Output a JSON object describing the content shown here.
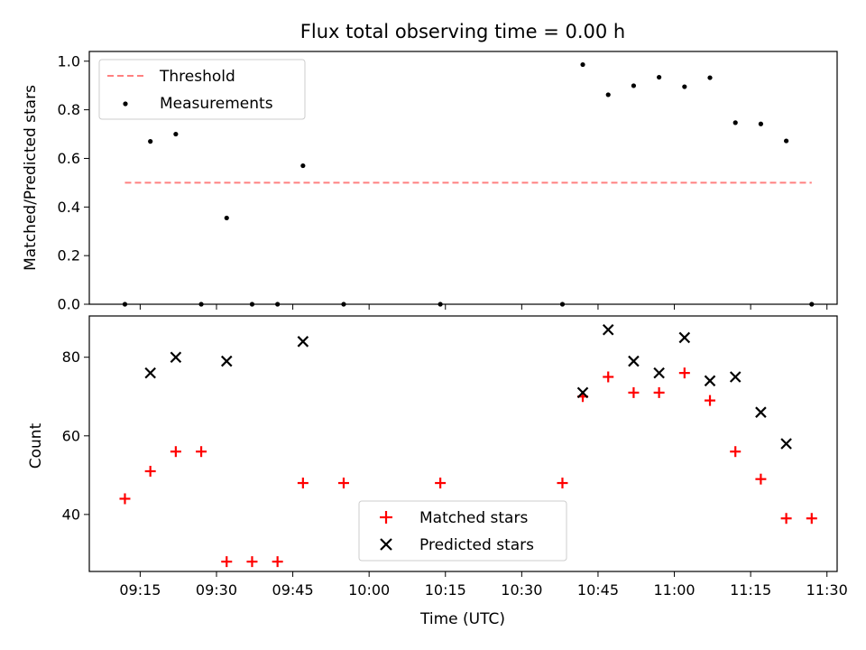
{
  "chart_data": [
    {
      "type": "scatter",
      "title": "Flux total observing time = 0.00 h",
      "xlabel": "",
      "ylabel": "Matched/Predicted stars",
      "ylim": [
        0.0,
        1.04
      ],
      "yticks": [
        "0.0",
        "0.2",
        "0.4",
        "0.6",
        "0.8",
        "1.0"
      ],
      "legend": {
        "placement": "upper-left",
        "entries": [
          "Threshold",
          "Measurements"
        ]
      },
      "threshold": {
        "name": "Threshold",
        "value": 0.5,
        "x_start": "09:12",
        "x_end": "11:27",
        "color": "#ff8080",
        "style": "dashed"
      },
      "series": [
        {
          "name": "Measurements",
          "color": "#000000",
          "x": [
            "09:12",
            "09:17",
            "09:22",
            "09:27",
            "09:32",
            "09:37",
            "09:42",
            "09:47",
            "09:55",
            "10:14",
            "10:38",
            "10:42",
            "10:47",
            "10:52",
            "10:57",
            "11:02",
            "11:07",
            "11:12",
            "11:17",
            "11:22",
            "11:27"
          ],
          "values": [
            0.0,
            0.67,
            0.7,
            0.0,
            0.355,
            0.0,
            0.0,
            0.57,
            0.0,
            0.0,
            0.0,
            0.986,
            0.862,
            0.899,
            0.934,
            0.895,
            0.932,
            0.747,
            0.742,
            0.672,
            0.0
          ]
        }
      ]
    },
    {
      "type": "scatter",
      "title": "",
      "xlabel": "Time (UTC)",
      "ylabel": "Count",
      "ylim": [
        25.5,
        90.5
      ],
      "yticks": [
        "40",
        "60",
        "80"
      ],
      "xticks": [
        "09:15",
        "09:30",
        "09:45",
        "10:00",
        "10:15",
        "10:30",
        "10:45",
        "11:00",
        "11:15",
        "11:30"
      ],
      "legend": {
        "placement": "lower-center",
        "entries": [
          "Matched stars",
          "Predicted stars"
        ]
      },
      "series": [
        {
          "name": "Matched stars",
          "marker": "plus",
          "color": "#ff0000",
          "x": [
            "09:12",
            "09:17",
            "09:22",
            "09:27",
            "09:32",
            "09:37",
            "09:42",
            "09:47",
            "09:55",
            "10:14",
            "10:38",
            "10:42",
            "10:47",
            "10:52",
            "10:57",
            "11:02",
            "11:07",
            "11:12",
            "11:17",
            "11:22",
            "11:27"
          ],
          "values": [
            44,
            51,
            56,
            56,
            28,
            28,
            28,
            48,
            48,
            48,
            48,
            70,
            75,
            71,
            71,
            76,
            69,
            56,
            49,
            39,
            39
          ]
        },
        {
          "name": "Predicted stars",
          "marker": "x",
          "color": "#000000",
          "x": [
            "09:17",
            "09:22",
            "09:32",
            "09:47",
            "10:42",
            "10:47",
            "10:52",
            "10:57",
            "11:02",
            "11:07",
            "11:12",
            "11:17",
            "11:22"
          ],
          "values": [
            76,
            80,
            79,
            84,
            71,
            87,
            79,
            76,
            85,
            74,
            75,
            66,
            58
          ]
        }
      ]
    }
  ]
}
